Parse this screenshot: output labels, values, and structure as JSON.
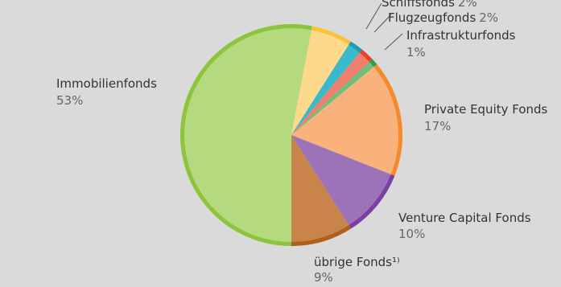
{
  "chart_data": {
    "type": "pie",
    "categories": [
      "Immobilienfonds",
      null,
      "Schiffsfonds",
      "Flugzeugfonds",
      "Infrastrukturfonds",
      "Private Equity Fonds",
      "Venture Capital Fonds",
      "übrige Fonds¹⁾"
    ],
    "values": [
      53,
      6,
      2,
      2,
      1,
      17,
      10,
      9
    ],
    "value_labels": [
      "53%",
      null,
      "2%",
      "2%",
      "1%",
      "17%",
      "10%",
      "9%"
    ],
    "colors": [
      "#b5d97e",
      "#fdd98c",
      "#38b9cc",
      "#f0806e",
      "#6cc07a",
      "#f9b27c",
      "#9c72b8",
      "#c8844a"
    ],
    "rim_colors": [
      "#8cc43c",
      "#fbc234",
      "#1c9fb6",
      "#e8402e",
      "#2ea043",
      "#f58a2a",
      "#7b3fa0",
      "#b0601e"
    ]
  }
}
